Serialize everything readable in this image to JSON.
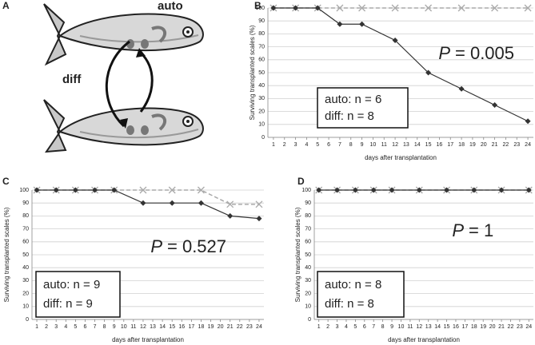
{
  "panel_a": {
    "letter": "A",
    "labels": [
      "auto",
      "diff"
    ]
  },
  "chart_data": [
    {
      "type": "line",
      "letter": "B",
      "ylabel": "Surviving transplanted scales (%)",
      "xlabel": "days after transplantation",
      "x": [
        1,
        3,
        5,
        7,
        9,
        12,
        15,
        18,
        21,
        24
      ],
      "xlim": [
        0.5,
        24.5
      ],
      "xticks": [
        1,
        2,
        3,
        4,
        5,
        6,
        7,
        8,
        9,
        10,
        11,
        12,
        13,
        14,
        15,
        16,
        17,
        18,
        19,
        20,
        21,
        22,
        23,
        24
      ],
      "ylim": [
        0,
        100
      ],
      "yticks": [
        0,
        10,
        20,
        30,
        40,
        50,
        60,
        70,
        80,
        90,
        100
      ],
      "grid": true,
      "series": [
        {
          "color": "#aaaaaa",
          "marker": "x",
          "dashed": true,
          "values": [
            100,
            100,
            100,
            100,
            100,
            100,
            100,
            100,
            100,
            100
          ]
        },
        {
          "color": "#333333",
          "marker": "diamond",
          "dashed": false,
          "values": [
            100,
            100,
            100,
            87.5,
            87.5,
            75,
            50,
            37.5,
            25,
            12.5
          ]
        }
      ],
      "stat": "P",
      "stat_value": "= 0.005",
      "notes": [
        "auto: n = 6",
        "diff: n = 8"
      ]
    },
    {
      "type": "line",
      "letter": "C",
      "ylabel": "Surviving transplanted scales (%)",
      "xlabel": "days after transplantation",
      "x": [
        1,
        3,
        5,
        7,
        9,
        12,
        15,
        18,
        21,
        24
      ],
      "xlim": [
        0.5,
        24.5
      ],
      "xticks": [
        1,
        2,
        3,
        4,
        5,
        6,
        7,
        8,
        9,
        10,
        11,
        12,
        13,
        14,
        15,
        16,
        17,
        18,
        19,
        20,
        21,
        22,
        23,
        24
      ],
      "ylim": [
        0,
        100
      ],
      "yticks": [
        0,
        10,
        20,
        30,
        40,
        50,
        60,
        70,
        80,
        90,
        100
      ],
      "grid": true,
      "series": [
        {
          "color": "#aaaaaa",
          "marker": "x",
          "dashed": true,
          "values": [
            100,
            100,
            100,
            100,
            100,
            100,
            100,
            100,
            89,
            89
          ]
        },
        {
          "color": "#333333",
          "marker": "diamond",
          "dashed": false,
          "values": [
            100,
            100,
            100,
            100,
            100,
            90,
            90,
            90,
            80,
            78
          ]
        }
      ],
      "stat": "P",
      "stat_value": "= 0.527",
      "notes": [
        "auto: n = 9",
        "diff: n = 9"
      ]
    },
    {
      "type": "line",
      "letter": "D",
      "ylabel": "Surviving transplanted scales (%)",
      "xlabel": "days after transplantation",
      "x": [
        1,
        3,
        5,
        7,
        9,
        12,
        15,
        18,
        21,
        24
      ],
      "xlim": [
        0.5,
        24.5
      ],
      "xticks": [
        1,
        2,
        3,
        4,
        5,
        6,
        7,
        8,
        9,
        10,
        11,
        12,
        13,
        14,
        15,
        16,
        17,
        18,
        19,
        20,
        21,
        22,
        23,
        24
      ],
      "ylim": [
        0,
        100
      ],
      "yticks": [
        0,
        10,
        20,
        30,
        40,
        50,
        60,
        70,
        80,
        90,
        100
      ],
      "grid": true,
      "series": [
        {
          "color": "#aaaaaa",
          "marker": "x",
          "dashed": true,
          "values": [
            100,
            100,
            100,
            100,
            100,
            100,
            100,
            100,
            100,
            100
          ]
        },
        {
          "color": "#333333",
          "marker": "diamond",
          "dashed": false,
          "values": [
            100,
            100,
            100,
            100,
            100,
            100,
            100,
            100,
            100,
            100
          ]
        }
      ],
      "stat": "P",
      "stat_value": "= 1",
      "notes": [
        "auto: n = 8",
        "diff: n = 8"
      ]
    }
  ]
}
